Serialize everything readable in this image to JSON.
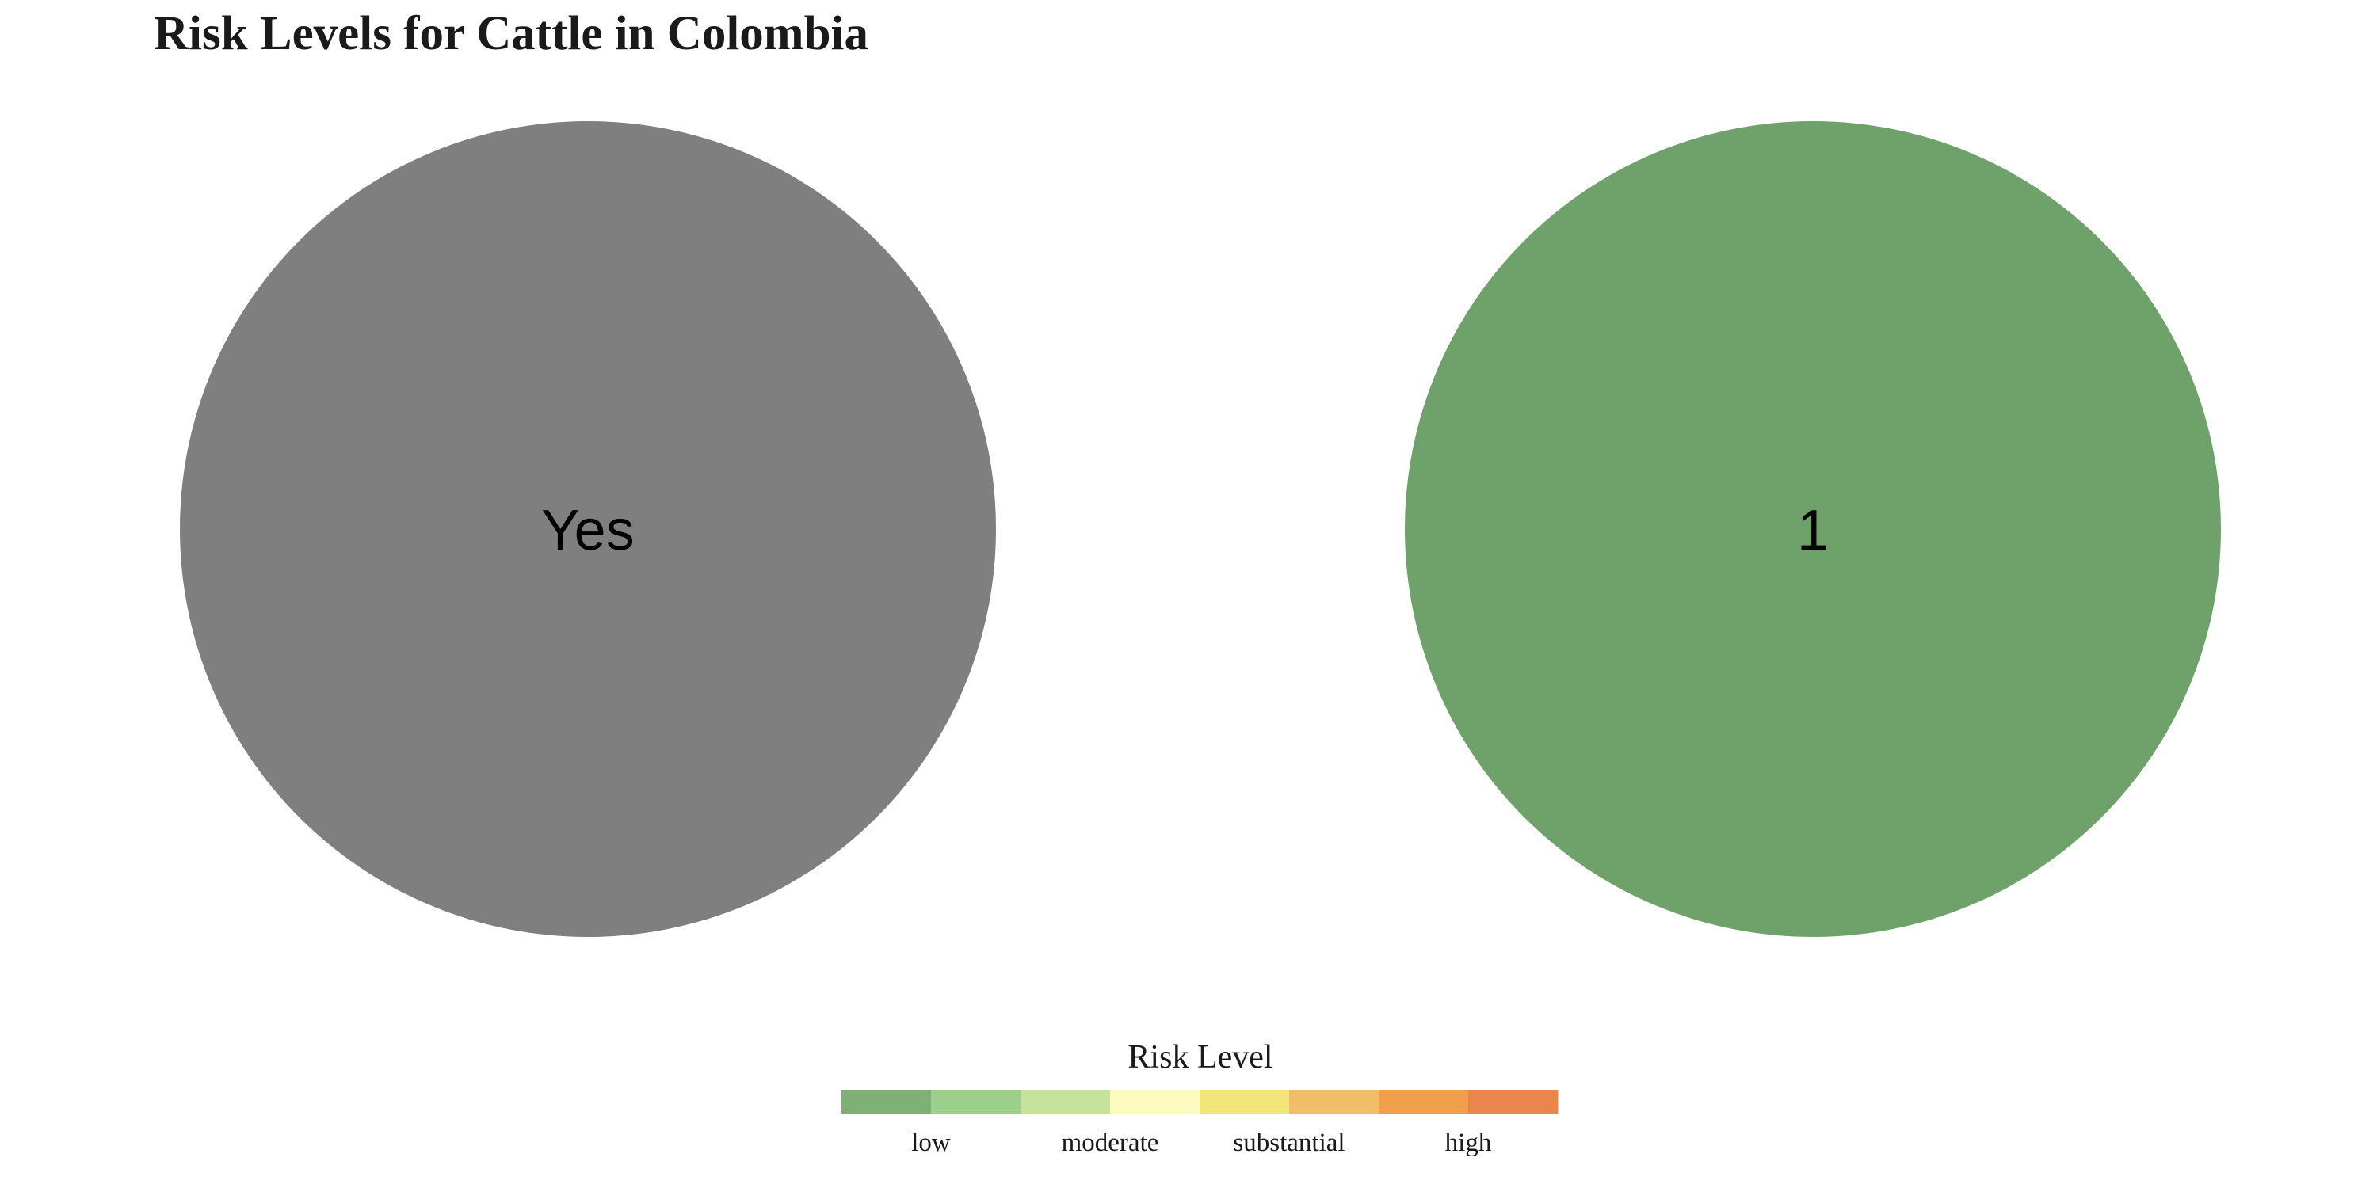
{
  "chart_data": {
    "type": "pie",
    "title": "Risk Levels for Cattle in Colombia",
    "panels": [
      {
        "label": "Yes",
        "value": 1,
        "color": "#7f7f7f"
      },
      {
        "label": "1",
        "value": 1,
        "color": "#6fa26a"
      }
    ],
    "legend": {
      "title": "Risk Level",
      "placement": "bottom-center",
      "colors": [
        "#7fb177",
        "#9ccf8b",
        "#c5e39e",
        "#fdfbc0",
        "#f1e57a",
        "#f2bd68",
        "#f0a04b",
        "#ea854c"
      ],
      "tick_labels": [
        "low",
        "moderate",
        "substantial",
        "high"
      ]
    }
  }
}
